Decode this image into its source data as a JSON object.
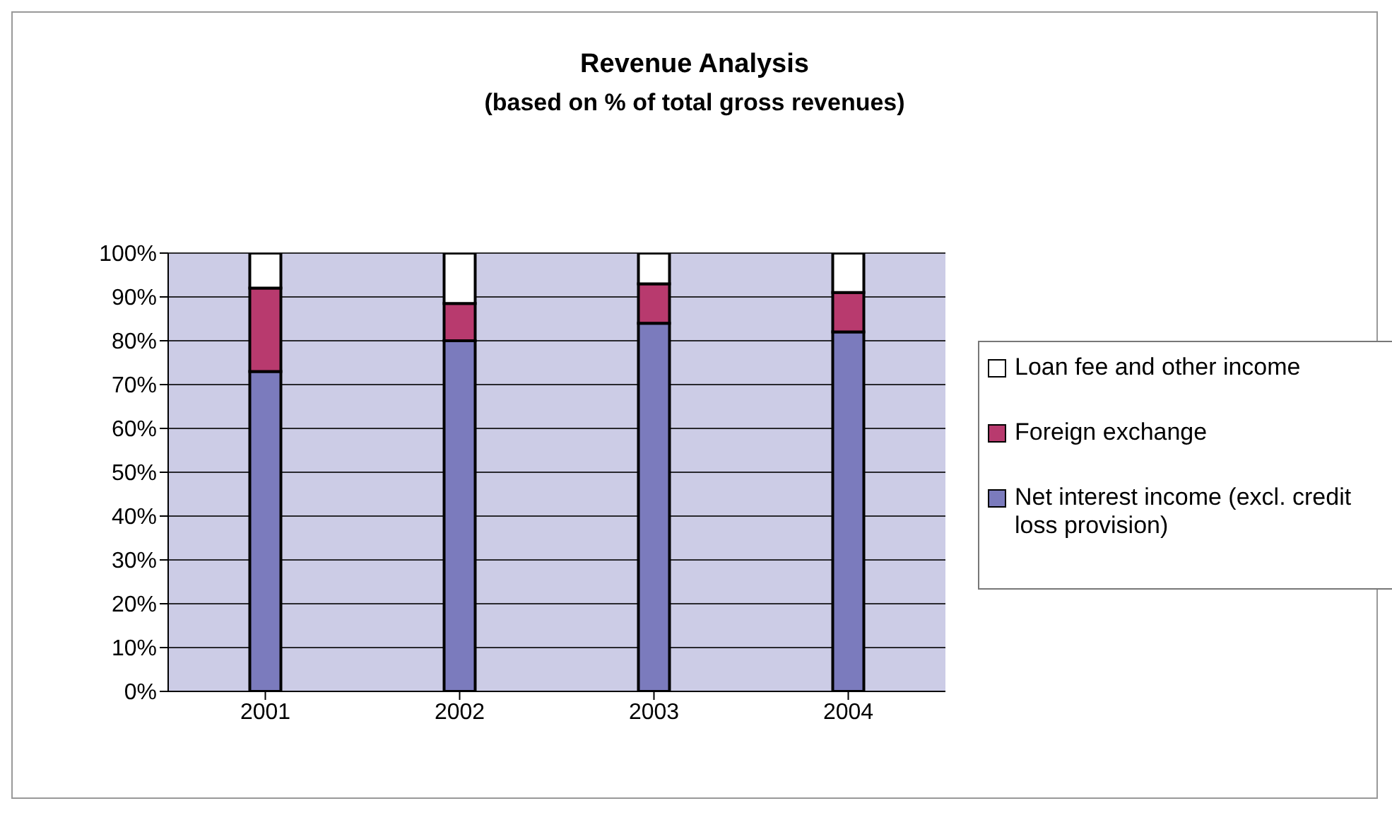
{
  "chart_data": {
    "type": "bar",
    "title": "Revenue Analysis",
    "subtitle": "(based on % of total gross revenues)",
    "categories": [
      "2001",
      "2002",
      "2003",
      "2004"
    ],
    "stacked": true,
    "series": [
      {
        "name": "Net interest income (excl. credit loss provision)",
        "color": "#7b7bbd",
        "values": [
          73,
          80,
          84,
          82
        ]
      },
      {
        "name": "Foreign exchange",
        "color": "#b83a6e",
        "values": [
          19,
          8.5,
          9,
          9
        ]
      },
      {
        "name": "Loan fee and other income",
        "color": "#ffffff",
        "values": [
          8,
          11.5,
          7,
          9
        ]
      }
    ],
    "ylim": [
      0,
      100
    ],
    "yticks": [
      {
        "value": 0,
        "label": "0%"
      },
      {
        "value": 10,
        "label": "10%"
      },
      {
        "value": 20,
        "label": "20%"
      },
      {
        "value": 30,
        "label": "30%"
      },
      {
        "value": 40,
        "label": "40%"
      },
      {
        "value": 50,
        "label": "50%"
      },
      {
        "value": 60,
        "label": "60%"
      },
      {
        "value": 70,
        "label": "70%"
      },
      {
        "value": 80,
        "label": "80%"
      },
      {
        "value": 90,
        "label": "90%"
      },
      {
        "value": 100,
        "label": "100%"
      }
    ],
    "grid": "y",
    "legend": "right"
  }
}
